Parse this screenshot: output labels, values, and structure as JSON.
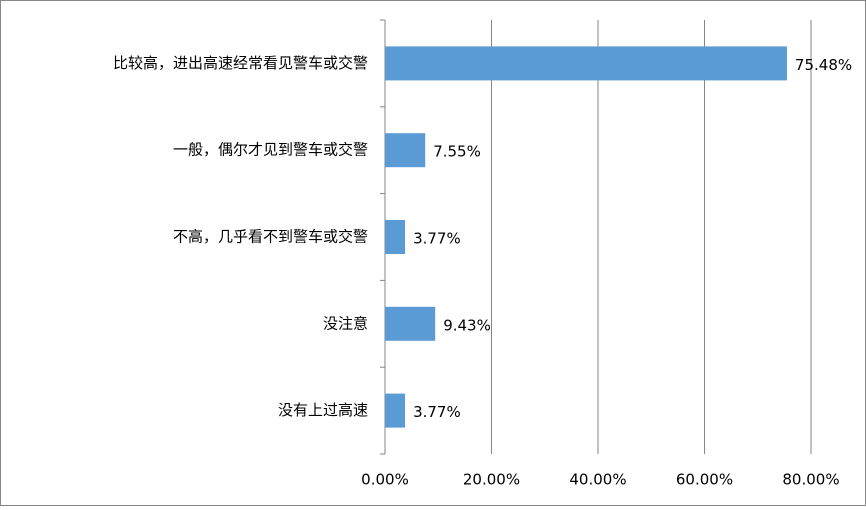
{
  "chart_data": {
    "type": "hbar",
    "categories": [
      "比较高，进出高速经常看见警车或交警",
      "一般，偶尔才见到警车或交警",
      "不高，几乎看不到警车或交警",
      "没注意",
      "没有上过高速"
    ],
    "values": [
      75.48,
      7.55,
      3.77,
      9.43,
      3.77
    ],
    "value_labels": [
      "75.48%",
      "7.55%",
      "3.77%",
      "9.43%",
      "3.77%"
    ],
    "color": "#5b9bd5",
    "xlim": [
      0,
      80
    ],
    "xticks": [
      {
        "value": 0,
        "label": "0.00%"
      },
      {
        "value": 20,
        "label": "20.00%"
      },
      {
        "value": 40,
        "label": "40.00%"
      },
      {
        "value": 60,
        "label": "60.00%"
      },
      {
        "value": 80,
        "label": "80.00%"
      }
    ],
    "grid": true
  }
}
